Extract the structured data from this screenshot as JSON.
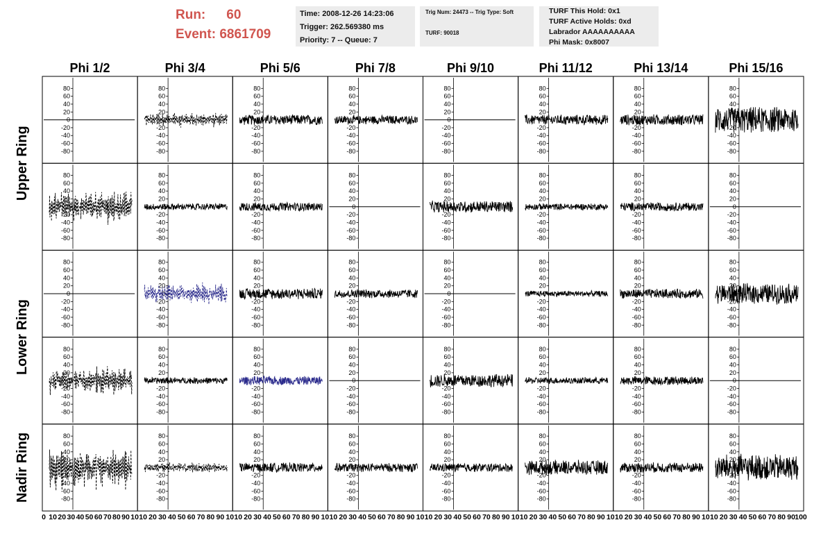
{
  "header": {
    "run_label": "Run:",
    "run_value": "60",
    "event_label": "Event:",
    "event_value": "6861709",
    "time": "Time: 2008-12-26 14:23:06",
    "trigger": "Trigger: 262.569380 ms",
    "priority": "Priority: 7 -- Queue: 7",
    "trig_num": "Trig Num: 24473 -- Trig Type: Soft",
    "turf_num": "TURF: 90018",
    "turf_hold": "TURF This Hold: 0x1",
    "turf_active": "TURF Active Holds: 0xd",
    "labrador": "Labrador AAAAAAAAAA",
    "phi_mask": "Phi Mask: 0x8007"
  },
  "colors": {
    "run_text": "#d0554f",
    "info_bg": "#ececec",
    "trace_black": "#000000",
    "trace_blue": "#2b2b8c"
  },
  "chart_data": {
    "type": "line",
    "columns": [
      "Phi 1/2",
      "Phi 3/4",
      "Phi 5/6",
      "Phi 7/8",
      "Phi 9/10",
      "Phi 11/12",
      "Phi 13/14",
      "Phi 15/16"
    ],
    "row_groups": [
      {
        "label": "Upper Ring",
        "rows": [
          0,
          1
        ]
      },
      {
        "label": "Lower Ring",
        "rows": [
          2,
          3
        ]
      },
      {
        "label": "Nadir Ring",
        "rows": [
          4
        ]
      }
    ],
    "ylim": [
      -100,
      100
    ],
    "yticks": [
      -80,
      -60,
      -40,
      -20,
      0,
      20,
      40,
      60,
      80
    ],
    "xlim": [
      0,
      100
    ],
    "xtick_labels_first": [
      "0",
      "10",
      "20",
      "30",
      "40",
      "50",
      "60",
      "70",
      "80",
      "90",
      "10"
    ],
    "xtick_labels_middle": [
      "10",
      "20",
      "30",
      "40",
      "50",
      "60",
      "70",
      "80",
      "90",
      "10"
    ],
    "xtick_labels_last": [
      "10",
      "20",
      "30",
      "40",
      "50",
      "60",
      "70",
      "80",
      "90",
      "100"
    ],
    "samples_per_trace": 260,
    "traces": [
      [
        {
          "kind": "flat"
        },
        {
          "kind": "dashed",
          "amp": 14,
          "color": "black"
        },
        {
          "kind": "noise",
          "amp": 14,
          "color": "black"
        },
        {
          "kind": "noise",
          "amp": 12,
          "color": "black"
        },
        {
          "kind": "flat"
        },
        {
          "kind": "noise",
          "amp": 14,
          "color": "black"
        },
        {
          "kind": "noise",
          "amp": 15,
          "color": "black"
        },
        {
          "kind": "noise",
          "amp": 36,
          "color": "black"
        }
      ],
      [
        {
          "kind": "dashed",
          "amp": 30,
          "color": "black"
        },
        {
          "kind": "noise",
          "amp": 9,
          "color": "black"
        },
        {
          "kind": "noise",
          "amp": 12,
          "color": "black"
        },
        {
          "kind": "flat"
        },
        {
          "kind": "noise",
          "amp": 16,
          "color": "black"
        },
        {
          "kind": "noise",
          "amp": 9,
          "color": "black"
        },
        {
          "kind": "noise",
          "amp": 12,
          "color": "black"
        },
        {
          "kind": "flat"
        }
      ],
      [
        {
          "kind": "flat"
        },
        {
          "kind": "dashed",
          "amp": 20,
          "color": "blue"
        },
        {
          "kind": "noise",
          "amp": 15,
          "color": "black"
        },
        {
          "kind": "noise",
          "amp": 12,
          "color": "black"
        },
        {
          "kind": "flat"
        },
        {
          "kind": "noise",
          "amp": 8,
          "color": "black"
        },
        {
          "kind": "noise",
          "amp": 13,
          "color": "black"
        },
        {
          "kind": "noise",
          "amp": 28,
          "color": "black"
        }
      ],
      [
        {
          "kind": "dashed",
          "amp": 26,
          "color": "black"
        },
        {
          "kind": "noise",
          "amp": 9,
          "color": "black"
        },
        {
          "kind": "noise",
          "amp": 12,
          "color": "blue"
        },
        {
          "kind": "flat"
        },
        {
          "kind": "noise",
          "amp": 18,
          "color": "black"
        },
        {
          "kind": "noise",
          "amp": 9,
          "color": "black"
        },
        {
          "kind": "noise",
          "amp": 12,
          "color": "black"
        },
        {
          "kind": "flat"
        }
      ],
      [
        {
          "kind": "dashed",
          "amp": 40,
          "color": "black"
        },
        {
          "kind": "dashed",
          "amp": 10,
          "color": "black"
        },
        {
          "kind": "noise",
          "amp": 13,
          "color": "black"
        },
        {
          "kind": "noise",
          "amp": 12,
          "color": "black"
        },
        {
          "kind": "noise",
          "amp": 12,
          "color": "black"
        },
        {
          "kind": "noise",
          "amp": 20,
          "color": "black"
        },
        {
          "kind": "noise",
          "amp": 14,
          "color": "black"
        },
        {
          "kind": "noise",
          "amp": 36,
          "color": "black"
        }
      ]
    ]
  }
}
